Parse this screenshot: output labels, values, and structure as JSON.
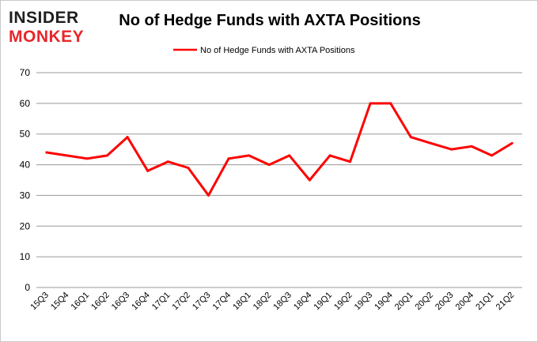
{
  "brand": {
    "line1": "INSIDER",
    "line2": "MONKEY",
    "color_dark": "#1f1f1f",
    "color_accent": "#e8262b"
  },
  "chart_data": {
    "type": "line",
    "title": "No of Hedge Funds with AXTA Positions",
    "xlabel": "",
    "ylabel": "",
    "categories": [
      "15Q3",
      "15Q4",
      "16Q1",
      "16Q2",
      "16Q3",
      "16Q4",
      "17Q1",
      "17Q2",
      "17Q3",
      "17Q4",
      "18Q1",
      "18Q2",
      "18Q3",
      "18Q4",
      "19Q1",
      "19Q2",
      "19Q3",
      "19Q4",
      "20Q1",
      "20Q2",
      "20Q3",
      "20Q4",
      "21Q1",
      "21Q2"
    ],
    "series": [
      {
        "name": "No of Hedge Funds with AXTA Positions",
        "color": "#ff0000",
        "values": [
          44,
          43,
          42,
          43,
          49,
          38,
          41,
          39,
          30,
          42,
          43,
          40,
          43,
          35,
          43,
          41,
          60,
          60,
          49,
          47,
          45,
          46,
          43,
          47
        ]
      }
    ],
    "ylim": [
      0,
      70
    ],
    "yticks": [
      0,
      10,
      20,
      30,
      40,
      50,
      60,
      70
    ],
    "grid": "horizontal",
    "legend": "top-center"
  }
}
